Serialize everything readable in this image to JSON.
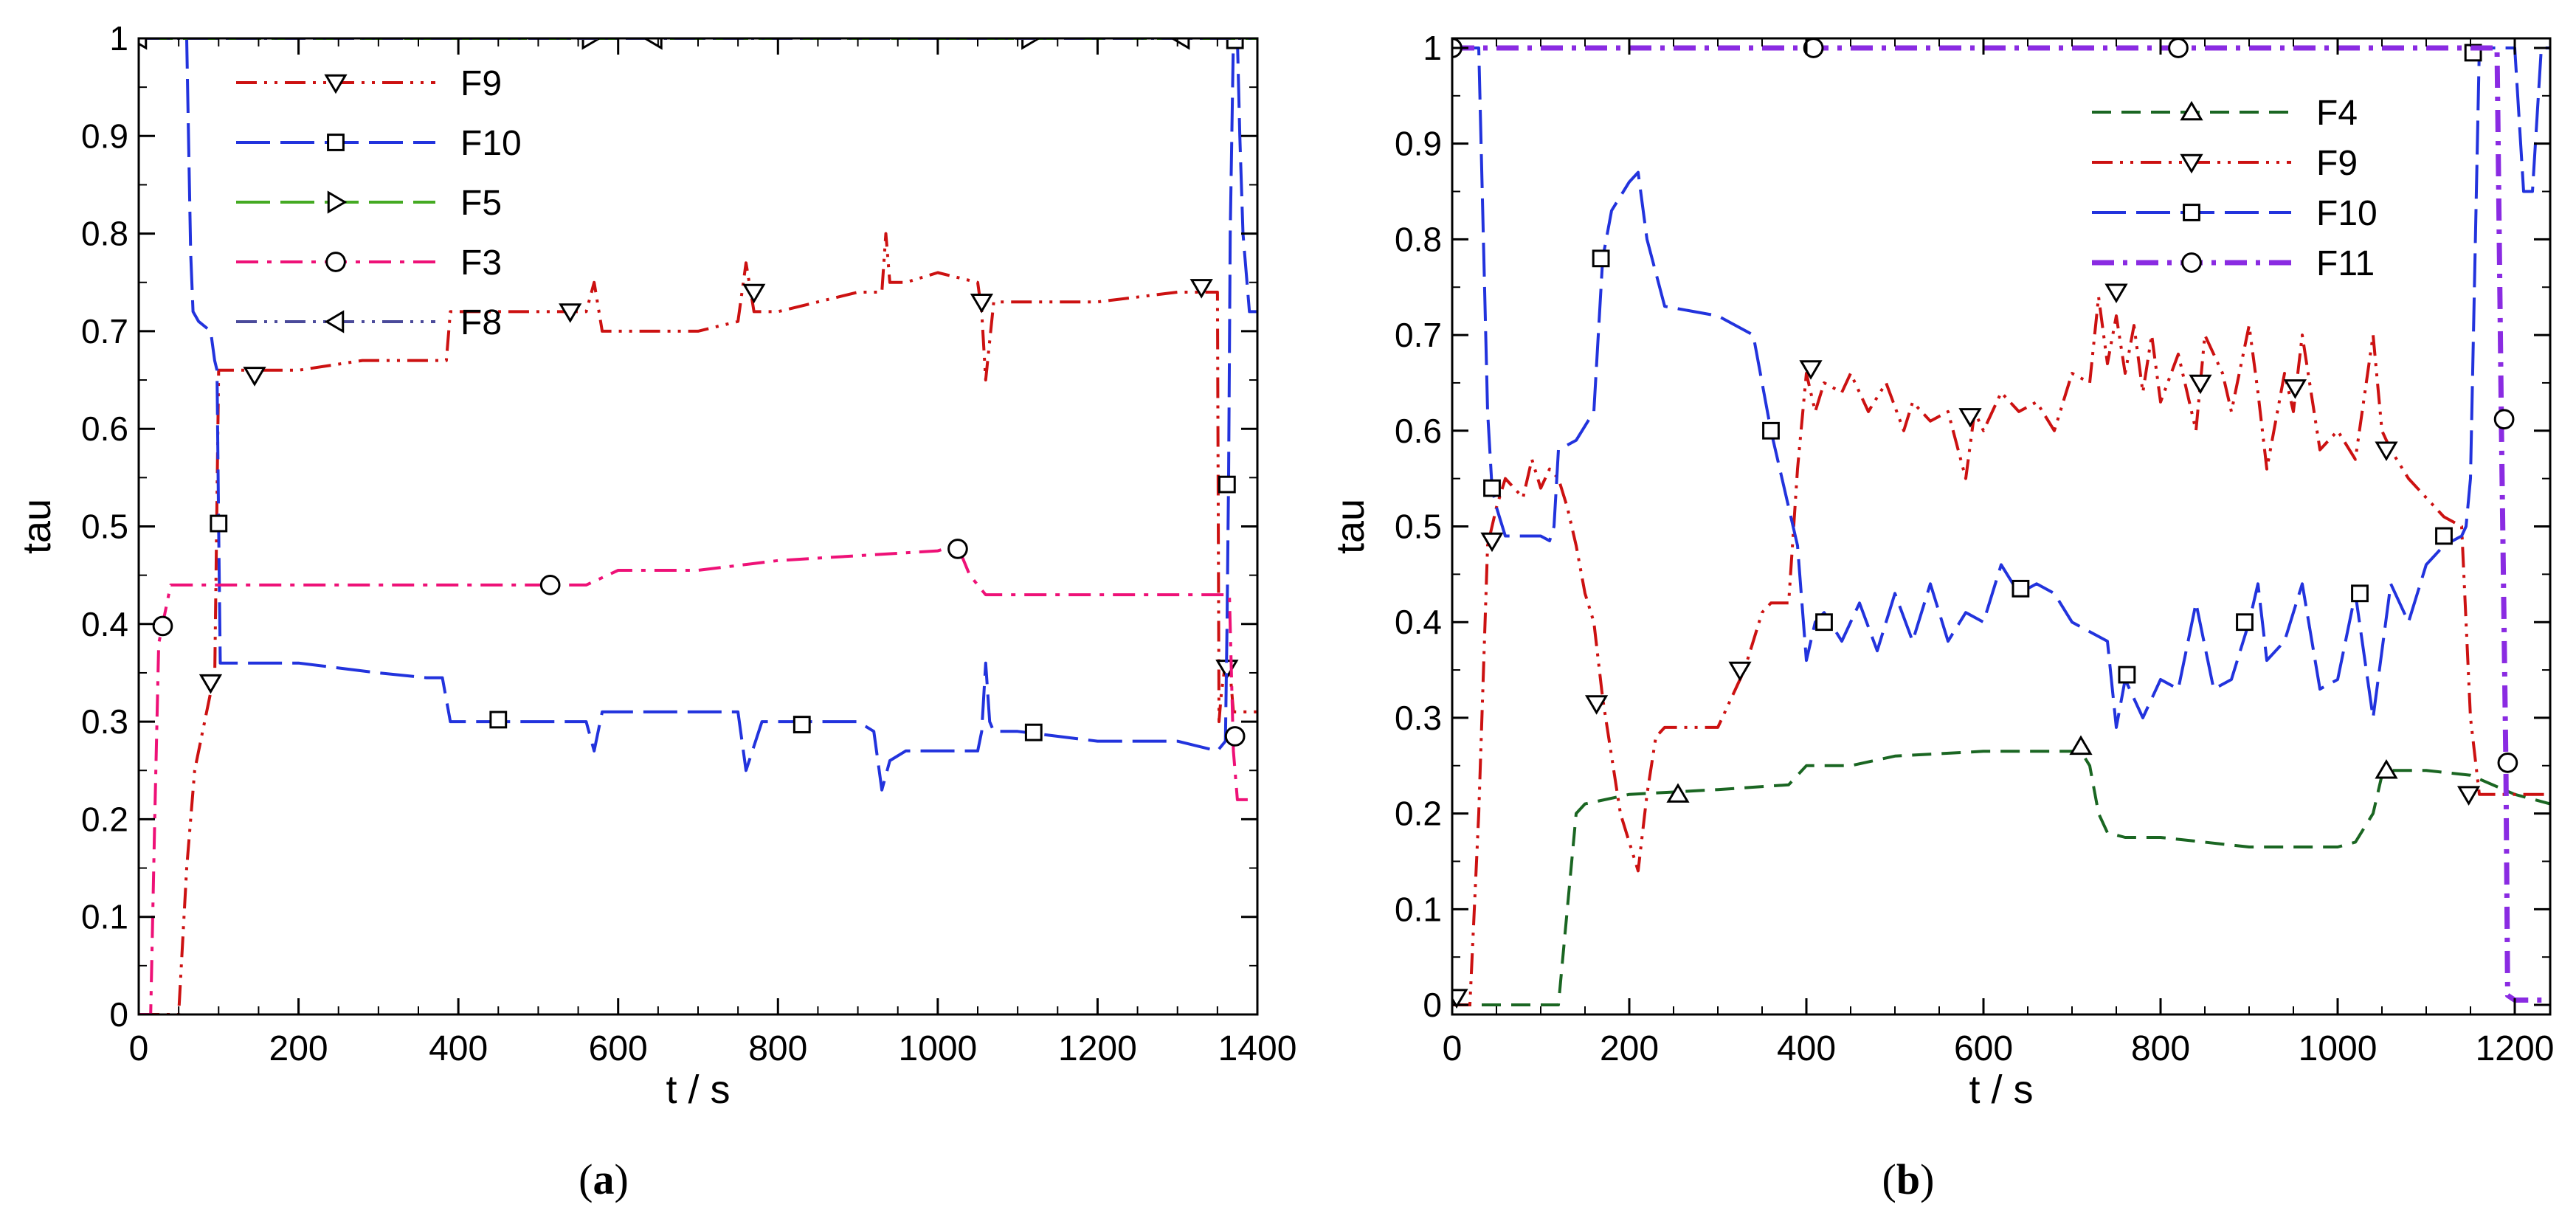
{
  "figure": {
    "background": "#ffffff",
    "axis_color": "#000000"
  },
  "chart_data": [
    {
      "id": "a",
      "type": "line",
      "caption": "(a)",
      "caption_letter": "a",
      "xlabel": "t / s",
      "ylabel": "tau",
      "xlim": [
        0,
        1400
      ],
      "ylim": [
        0,
        1
      ],
      "xticks": [
        "0",
        "200",
        "400",
        "600",
        "800",
        "1000",
        "1200",
        "1400"
      ],
      "xtick_values": [
        0,
        200,
        400,
        600,
        800,
        1000,
        1200,
        1400
      ],
      "yticks": [
        "0",
        "0.1",
        "0.2",
        "0.3",
        "0.4",
        "0.5",
        "0.6",
        "0.7",
        "0.8",
        "0.9",
        "1"
      ],
      "ytick_values": [
        0,
        0.1,
        0.2,
        0.3,
        0.4,
        0.5,
        0.6,
        0.7,
        0.8,
        0.9,
        1
      ],
      "grid": false,
      "legend": "top-left",
      "series": [
        {
          "name": "F9",
          "color": "#cc1111",
          "dash": "dashdotdot",
          "marker": "triangle-down",
          "x": [
            0,
            50,
            60,
            70,
            80,
            90,
            95,
            100,
            110,
            150,
            200,
            280,
            300,
            350,
            385,
            390,
            450,
            540,
            560,
            570,
            580,
            600,
            650,
            700,
            750,
            760,
            770,
            800,
            850,
            900,
            930,
            935,
            940,
            960,
            1000,
            1050,
            1055,
            1060,
            1070,
            1100,
            1200,
            1300,
            1340,
            1350,
            1352,
            1355,
            1360,
            1365,
            1370,
            1375,
            1380,
            1400
          ],
          "y": [
            0,
            0,
            0.15,
            0.25,
            0.29,
            0.33,
            0.34,
            0.66,
            0.66,
            0.66,
            0.66,
            0.67,
            0.67,
            0.67,
            0.67,
            0.72,
            0.72,
            0.72,
            0.72,
            0.75,
            0.7,
            0.7,
            0.7,
            0.7,
            0.71,
            0.77,
            0.72,
            0.72,
            0.73,
            0.74,
            0.74,
            0.8,
            0.75,
            0.75,
            0.76,
            0.75,
            0.72,
            0.65,
            0.73,
            0.73,
            0.73,
            0.74,
            0.74,
            0.74,
            0.3,
            0.33,
            0.36,
            0.36,
            0.31,
            0.31,
            0.31,
            0.31
          ],
          "marker_x": [
            90,
            145,
            540,
            770,
            1055,
            1330,
            1362
          ],
          "marker_y": [
            0.34,
            0.655,
            0.72,
            0.74,
            0.73,
            0.745,
            0.355
          ]
        },
        {
          "name": "F10",
          "color": "#2233dd",
          "dash": "longdash",
          "marker": "square",
          "x": [
            0,
            55,
            60,
            65,
            68,
            75,
            90,
            95,
            98,
            100,
            102,
            110,
            200,
            300,
            360,
            380,
            390,
            400,
            500,
            560,
            570,
            580,
            600,
            700,
            750,
            760,
            780,
            800,
            900,
            920,
            930,
            940,
            960,
            1000,
            1050,
            1055,
            1060,
            1065,
            1070,
            1100,
            1200,
            1300,
            1350,
            1360,
            1362,
            1364,
            1366,
            1370,
            1375,
            1378,
            1382,
            1390,
            1400
          ],
          "y": [
            1,
            1,
            1,
            0.78,
            0.72,
            0.71,
            0.7,
            0.67,
            0.66,
            0.5,
            0.36,
            0.36,
            0.36,
            0.35,
            0.345,
            0.345,
            0.3,
            0.3,
            0.3,
            0.3,
            0.27,
            0.31,
            0.31,
            0.31,
            0.31,
            0.25,
            0.3,
            0.3,
            0.3,
            0.29,
            0.23,
            0.26,
            0.27,
            0.27,
            0.27,
            0.29,
            0.36,
            0.3,
            0.29,
            0.29,
            0.28,
            0.28,
            0.27,
            0.28,
            0.4,
            0.55,
            0.8,
            1,
            1,
            0.9,
            0.8,
            0.72,
            0.72
          ],
          "marker_x": [
            100,
            450,
            830,
            1120,
            1362,
            1372
          ],
          "marker_y": [
            0.503,
            0.302,
            0.297,
            0.289,
            0.543,
            0.998
          ]
        },
        {
          "name": "F5",
          "color": "#44aa22",
          "dash": "longdash",
          "marker": "triangle-right",
          "x": [
            0,
            1400
          ],
          "y": [
            1,
            1
          ],
          "marker_x": [
            565,
            1115
          ],
          "marker_y": [
            1,
            1
          ]
        },
        {
          "name": "F3",
          "color": "#ee1177",
          "dash": "dashdot",
          "marker": "circle",
          "x": [
            0,
            15,
            20,
            25,
            30,
            35,
            40,
            200,
            400,
            500,
            560,
            600,
            700,
            800,
            1000,
            1020,
            1030,
            1040,
            1060,
            1080,
            1200,
            1300,
            1350,
            1365,
            1370,
            1375,
            1380,
            1400
          ],
          "y": [
            0,
            0,
            0.2,
            0.38,
            0.4,
            0.42,
            0.44,
            0.44,
            0.44,
            0.44,
            0.44,
            0.455,
            0.455,
            0.465,
            0.475,
            0.48,
            0.47,
            0.45,
            0.43,
            0.43,
            0.43,
            0.43,
            0.43,
            0.43,
            0.27,
            0.22,
            0.22,
            0.22
          ],
          "marker_x": [
            30,
            515,
            1025,
            1372
          ],
          "marker_y": [
            0.398,
            0.44,
            0.477,
            0.285
          ]
        },
        {
          "name": "F8",
          "color": "#4a4a9a",
          "dash": "dashdotdot",
          "marker": "triangle-left",
          "x": [
            0,
            1400
          ],
          "y": [
            1,
            1
          ],
          "marker_x": [
            0,
            645,
            1305
          ],
          "marker_y": [
            1,
            1,
            1
          ]
        }
      ]
    },
    {
      "id": "b",
      "type": "line",
      "caption": "(b)",
      "caption_letter": "b",
      "xlabel": "t / s",
      "ylabel": "tau",
      "xlim": [
        0,
        1240
      ],
      "ylim": [
        -0.01,
        1.01
      ],
      "xticks": [
        "0",
        "200",
        "400",
        "600",
        "800",
        "1000",
        "1200"
      ],
      "xtick_values": [
        0,
        200,
        400,
        600,
        800,
        1000,
        1200
      ],
      "yticks": [
        "0",
        "0.1",
        "0.2",
        "0.3",
        "0.4",
        "0.5",
        "0.6",
        "0.7",
        "0.8",
        "0.9",
        "1"
      ],
      "ytick_values": [
        0,
        0.1,
        0.2,
        0.3,
        0.4,
        0.5,
        0.6,
        0.7,
        0.8,
        0.9,
        1
      ],
      "grid": false,
      "legend": "top-right",
      "series": [
        {
          "name": "F4",
          "color": "#1a6622",
          "dash": "dashed",
          "marker": "triangle-up",
          "x": [
            0,
            120,
            125,
            130,
            140,
            150,
            200,
            300,
            380,
            400,
            450,
            500,
            600,
            700,
            710,
            720,
            730,
            740,
            760,
            800,
            900,
            1000,
            1020,
            1040,
            1050,
            1060,
            1100,
            1150,
            1200,
            1240
          ],
          "y": [
            0,
            0,
            0.05,
            0.1,
            0.2,
            0.21,
            0.22,
            0.225,
            0.23,
            0.25,
            0.25,
            0.26,
            0.265,
            0.265,
            0.265,
            0.25,
            0.2,
            0.18,
            0.175,
            0.175,
            0.165,
            0.165,
            0.17,
            0.2,
            0.24,
            0.245,
            0.245,
            0.24,
            0.22,
            0.21
          ],
          "marker_x": [
            255,
            710,
            1055
          ],
          "marker_y": [
            0.22,
            0.27,
            0.245
          ]
        },
        {
          "name": "F9",
          "color": "#cc1111",
          "dash": "dashdotdot",
          "marker": "triangle-down",
          "x": [
            0,
            20,
            30,
            40,
            50,
            60,
            80,
            90,
            100,
            110,
            120,
            130,
            140,
            150,
            160,
            170,
            180,
            190,
            200,
            210,
            220,
            230,
            240,
            300,
            320,
            330,
            340,
            350,
            360,
            380,
            390,
            400,
            410,
            420,
            440,
            450,
            470,
            490,
            510,
            520,
            540,
            560,
            580,
            590,
            600,
            620,
            640,
            660,
            680,
            700,
            720,
            730,
            740,
            750,
            760,
            770,
            780,
            790,
            800,
            820,
            840,
            850,
            870,
            880,
            900,
            910,
            920,
            940,
            950,
            960,
            980,
            1000,
            1020,
            1040,
            1050,
            1060,
            1080,
            1100,
            1120,
            1140,
            1150,
            1160,
            1170,
            1180,
            1200,
            1240
          ],
          "y": [
            0,
            0,
            0.2,
            0.48,
            0.52,
            0.55,
            0.53,
            0.57,
            0.54,
            0.56,
            0.55,
            0.52,
            0.48,
            0.43,
            0.4,
            0.32,
            0.26,
            0.2,
            0.17,
            0.14,
            0.22,
            0.28,
            0.29,
            0.29,
            0.33,
            0.35,
            0.38,
            0.41,
            0.42,
            0.42,
            0.56,
            0.66,
            0.62,
            0.65,
            0.64,
            0.66,
            0.62,
            0.65,
            0.6,
            0.63,
            0.61,
            0.62,
            0.55,
            0.62,
            0.6,
            0.64,
            0.62,
            0.63,
            0.6,
            0.66,
            0.65,
            0.74,
            0.67,
            0.72,
            0.66,
            0.71,
            0.64,
            0.7,
            0.63,
            0.68,
            0.6,
            0.7,
            0.66,
            0.62,
            0.71,
            0.64,
            0.56,
            0.66,
            0.62,
            0.7,
            0.58,
            0.6,
            0.57,
            0.7,
            0.6,
            0.58,
            0.55,
            0.53,
            0.51,
            0.5,
            0.3,
            0.22,
            0.22,
            0.22,
            0.22,
            0.22
          ],
          "marker_x": [
            5,
            45,
            163,
            325,
            405,
            585,
            750,
            845,
            952,
            1055,
            1148
          ],
          "marker_y": [
            0.008,
            0.485,
            0.315,
            0.35,
            0.665,
            0.615,
            0.745,
            0.65,
            0.645,
            0.58,
            0.22
          ]
        },
        {
          "name": "F10",
          "color": "#2233dd",
          "dash": "longdash",
          "marker": "square",
          "x": [
            0,
            30,
            40,
            45,
            50,
            60,
            100,
            110,
            115,
            120,
            140,
            160,
            170,
            180,
            200,
            210,
            220,
            240,
            300,
            340,
            360,
            370,
            380,
            390,
            400,
            410,
            420,
            440,
            460,
            480,
            500,
            520,
            540,
            560,
            580,
            600,
            620,
            640,
            660,
            680,
            700,
            720,
            740,
            750,
            760,
            780,
            800,
            820,
            840,
            860,
            880,
            900,
            910,
            920,
            940,
            960,
            980,
            1000,
            1020,
            1040,
            1060,
            1080,
            1100,
            1120,
            1140,
            1145,
            1150,
            1160,
            1170,
            1180,
            1200,
            1210,
            1220,
            1230,
            1240
          ],
          "y": [
            1,
            1,
            0.62,
            0.54,
            0.52,
            0.49,
            0.49,
            0.485,
            0.5,
            0.58,
            0.59,
            0.62,
            0.78,
            0.83,
            0.86,
            0.87,
            0.8,
            0.73,
            0.72,
            0.7,
            0.6,
            0.56,
            0.52,
            0.48,
            0.36,
            0.4,
            0.41,
            0.38,
            0.42,
            0.37,
            0.43,
            0.38,
            0.44,
            0.38,
            0.41,
            0.4,
            0.46,
            0.43,
            0.44,
            0.43,
            0.4,
            0.39,
            0.38,
            0.29,
            0.34,
            0.3,
            0.34,
            0.33,
            0.42,
            0.33,
            0.34,
            0.4,
            0.44,
            0.36,
            0.38,
            0.44,
            0.33,
            0.34,
            0.43,
            0.3,
            0.44,
            0.4,
            0.46,
            0.48,
            0.49,
            0.5,
            0.55,
            1,
            1,
            1,
            1,
            0.85,
            0.85,
            1,
            1
          ],
          "marker_x": [
            45,
            168,
            360,
            420,
            642,
            762,
            895,
            1025,
            1120,
            1153
          ],
          "marker_y": [
            0.54,
            0.78,
            0.6,
            0.4,
            0.435,
            0.345,
            0.4,
            0.43,
            0.49,
            0.995
          ]
        },
        {
          "name": "F11",
          "color": "#8a2be2",
          "dash": "dashdot",
          "marker": "circle",
          "x": [
            0,
            1180,
            1185,
            1190,
            1192,
            1200,
            1240
          ],
          "y": [
            1,
            1,
            0.6,
            0.25,
            0.01,
            0.005,
            0.005
          ],
          "marker_x": [
            0,
            408,
            820,
            1188,
            1192
          ],
          "marker_y": [
            1,
            1,
            1,
            0.612,
            0.253
          ]
        }
      ]
    }
  ]
}
